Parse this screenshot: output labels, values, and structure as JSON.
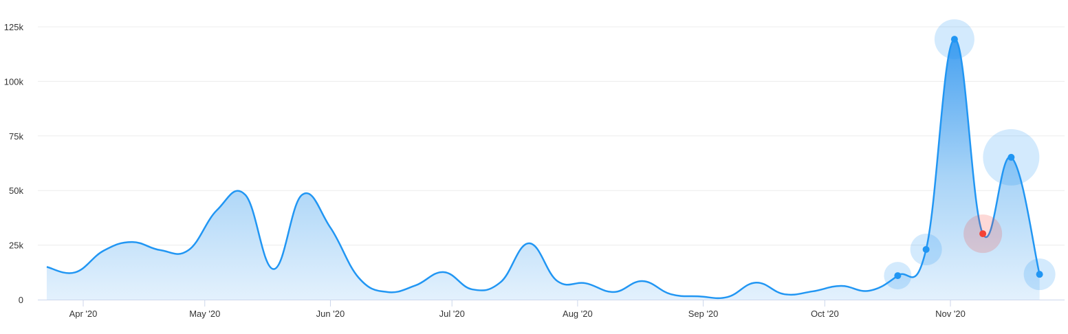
{
  "chart_data": {
    "type": "area",
    "title": "",
    "xlabel": "",
    "ylabel": "",
    "x_start": "2020-03-23",
    "x_interval_days": 7,
    "x": [
      "2020-03-23",
      "2020-03-30",
      "2020-04-06",
      "2020-04-13",
      "2020-04-20",
      "2020-04-27",
      "2020-05-04",
      "2020-05-11",
      "2020-05-18",
      "2020-05-25",
      "2020-06-01",
      "2020-06-08",
      "2020-06-15",
      "2020-06-22",
      "2020-06-29",
      "2020-07-06",
      "2020-07-13",
      "2020-07-20",
      "2020-07-27",
      "2020-08-03",
      "2020-08-10",
      "2020-08-17",
      "2020-08-24",
      "2020-08-31",
      "2020-09-07",
      "2020-09-14",
      "2020-09-21",
      "2020-09-28",
      "2020-10-05",
      "2020-10-12",
      "2020-10-19",
      "2020-10-26",
      "2020-11-02",
      "2020-11-09",
      "2020-11-16",
      "2020-11-23"
    ],
    "values": [
      15000,
      12500,
      22400,
      26400,
      22700,
      22700,
      41000,
      48000,
      14000,
      48000,
      33000,
      10000,
      3500,
      6500,
      12600,
      4700,
      8000,
      25800,
      8500,
      7500,
      3500,
      8500,
      2500,
      1500,
      1200,
      7800,
      2500,
      3800,
      6300,
      4100,
      11000,
      23000,
      119300,
      30200,
      65200,
      11600
    ],
    "markers": [
      {
        "index": 30,
        "bubble_size": 20,
        "color": "#2196f3"
      },
      {
        "index": 31,
        "bubble_size": 23,
        "color": "#2196f3"
      },
      {
        "index": 32,
        "bubble_size": 29,
        "color": "#2196f3"
      },
      {
        "index": 33,
        "bubble_size": 28,
        "color": "#f44336"
      },
      {
        "index": 34,
        "bubble_size": 41,
        "color": "#2196f3"
      },
      {
        "index": 35,
        "bubble_size": 23,
        "color": "#2196f3"
      }
    ],
    "ylim": [
      0,
      125000
    ],
    "y_ticks": [
      0,
      25000,
      50000,
      75000,
      100000,
      125000
    ],
    "y_tick_labels": [
      "0",
      "25k",
      "50k",
      "75k",
      "100k",
      "125k"
    ],
    "x_ticks": [
      "2020-04-01",
      "2020-05-01",
      "2020-06-01",
      "2020-07-01",
      "2020-08-01",
      "2020-09-01",
      "2020-10-01",
      "2020-11-01"
    ],
    "x_tick_labels": [
      "Apr '20",
      "May '20",
      "Jun '20",
      "Jul '20",
      "Aug '20",
      "Sep '20",
      "Oct '20",
      "Nov '20"
    ],
    "grid": true,
    "legend": "none",
    "colors": {
      "line": "#2196f3",
      "fill_top": "#3d9cf0",
      "fill_bottom": "#e3f1fd",
      "highlight": "#f44336",
      "grid": "#ececec",
      "axis": "#ccd6eb"
    }
  }
}
